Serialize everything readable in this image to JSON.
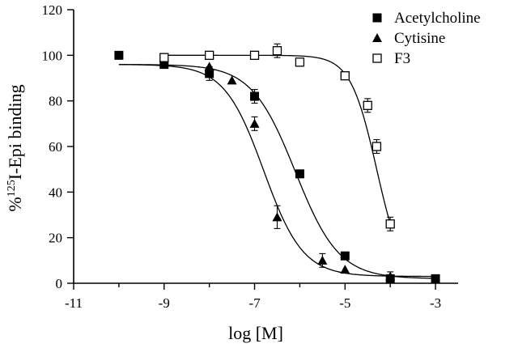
{
  "chart_data": {
    "type": "scatter",
    "title": "",
    "xlabel": "log [M]",
    "ylabel": {
      "prefix": "%",
      "sup": "125",
      "suffix": "I-Epi binding"
    },
    "xlim": [
      -11,
      -2.5
    ],
    "ylim": [
      0,
      120
    ],
    "xticks": [
      -11,
      -9,
      -7,
      -5,
      -3
    ],
    "yticks": [
      0,
      20,
      40,
      60,
      80,
      100,
      120
    ],
    "grid": false,
    "legend_position": "top-right",
    "series": [
      {
        "name": "Acetylcholine",
        "marker": "filled-square",
        "points": [
          {
            "x": -10,
            "y": 100,
            "err": 0
          },
          {
            "x": -9,
            "y": 96,
            "err": 0
          },
          {
            "x": -8,
            "y": 92,
            "err": 3
          },
          {
            "x": -7,
            "y": 82,
            "err": 3
          },
          {
            "x": -6,
            "y": 48,
            "err": 0
          },
          {
            "x": -5,
            "y": 12,
            "err": 0
          },
          {
            "x": -4,
            "y": 2,
            "err": 0
          },
          {
            "x": -3,
            "y": 2,
            "err": 0
          }
        ],
        "fit": {
          "top": 96,
          "bottom": 2,
          "logEC50": -6.1,
          "hill": 0.9
        }
      },
      {
        "name": "Cytisine",
        "marker": "filled-triangle",
        "points": [
          {
            "x": -9,
            "y": 99,
            "err": 0
          },
          {
            "x": -8,
            "y": 95,
            "err": 0
          },
          {
            "x": -7.5,
            "y": 89,
            "err": 0
          },
          {
            "x": -7,
            "y": 70,
            "err": 3
          },
          {
            "x": -6.5,
            "y": 29,
            "err": 5
          },
          {
            "x": -5.5,
            "y": 10,
            "err": 3
          },
          {
            "x": -5,
            "y": 6,
            "err": 0
          },
          {
            "x": -4,
            "y": 3,
            "err": 2
          }
        ],
        "fit": {
          "top": 96,
          "bottom": 3,
          "logEC50": -6.8,
          "hill": 1.0
        }
      },
      {
        "name": "F3",
        "marker": "open-square",
        "points": [
          {
            "x": -9,
            "y": 99,
            "err": 0
          },
          {
            "x": -8,
            "y": 100,
            "err": 0
          },
          {
            "x": -7,
            "y": 100,
            "err": 0
          },
          {
            "x": -6.5,
            "y": 102,
            "err": 3
          },
          {
            "x": -6,
            "y": 97,
            "err": 0
          },
          {
            "x": -5,
            "y": 91,
            "err": 0
          },
          {
            "x": -4.5,
            "y": 78,
            "err": 3
          },
          {
            "x": -4.3,
            "y": 60,
            "err": 3
          },
          {
            "x": -4,
            "y": 26,
            "err": 3
          }
        ],
        "fit": {
          "top": 100,
          "bottom": 0,
          "logEC50": -4.3,
          "hill": 1.5
        }
      }
    ]
  }
}
